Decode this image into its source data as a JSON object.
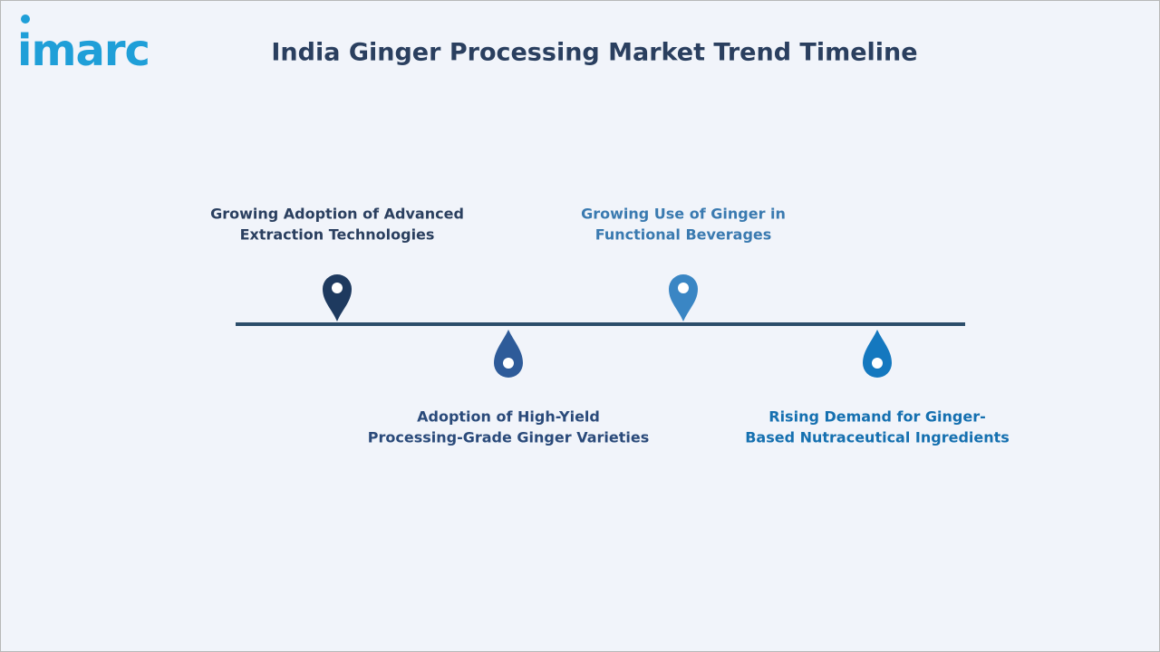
{
  "logo": "imarc",
  "title": "India Ginger Processing Market Trend Timeline",
  "events": [
    {
      "lines": [
        "Growing Adoption of Advanced",
        "Extraction Technologies"
      ]
    },
    {
      "lines": [
        "Adoption of High-Yield",
        "Processing-Grade Ginger Varieties"
      ]
    },
    {
      "lines": [
        "Growing Use of Ginger in",
        "Functional Beverages"
      ]
    },
    {
      "lines": [
        "Rising Demand for Ginger-",
        "Based Nutraceutical Ingredients"
      ]
    }
  ]
}
